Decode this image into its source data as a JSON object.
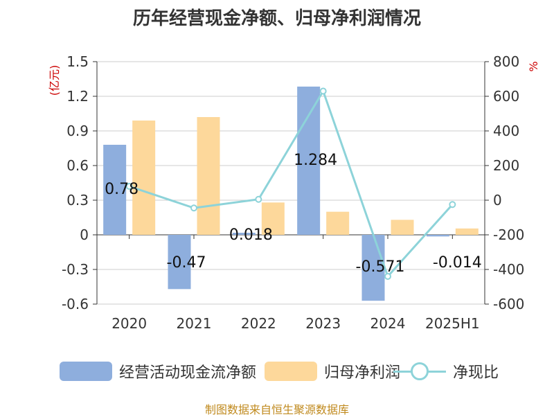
{
  "title": "历年经营现金净额、归母净利润情况",
  "source": "制图数据来自恒生聚源数据库",
  "chart_data": {
    "type": "bar",
    "categories": [
      "2020",
      "2021",
      "2022",
      "2023",
      "2024",
      "2025H1"
    ],
    "left_axis": {
      "label": "(亿元)",
      "ylim": [
        -0.6,
        1.5
      ],
      "ticks": [
        "-0.6",
        "-0.3",
        "0",
        "0.3",
        "0.6",
        "0.9",
        "1.2",
        "1.5"
      ]
    },
    "right_axis": {
      "label": "%",
      "ylim": [
        -600,
        800
      ],
      "ticks": [
        "-600",
        "-400",
        "-200",
        "0",
        "200",
        "400",
        "600",
        "800"
      ]
    },
    "series": [
      {
        "name": "经营活动现金流净额",
        "kind": "bar",
        "axis": "left",
        "color": "#8eaedd",
        "values": [
          0.78,
          -0.47,
          0.018,
          1.284,
          -0.571,
          -0.014
        ],
        "labels": [
          "0.78",
          "-0.47",
          "0.018",
          "1.284",
          "-0.571",
          "-0.014"
        ]
      },
      {
        "name": "归母净利润",
        "kind": "bar",
        "axis": "left",
        "color": "#fdd89b",
        "values": [
          0.99,
          1.02,
          0.28,
          0.2,
          0.13,
          0.055
        ]
      },
      {
        "name": "净现比",
        "kind": "line",
        "axis": "right",
        "color": "#8dd3d9",
        "values": [
          80,
          -45,
          5,
          630,
          -440,
          -25
        ]
      }
    ],
    "grid": true,
    "legend_position": "bottom"
  }
}
